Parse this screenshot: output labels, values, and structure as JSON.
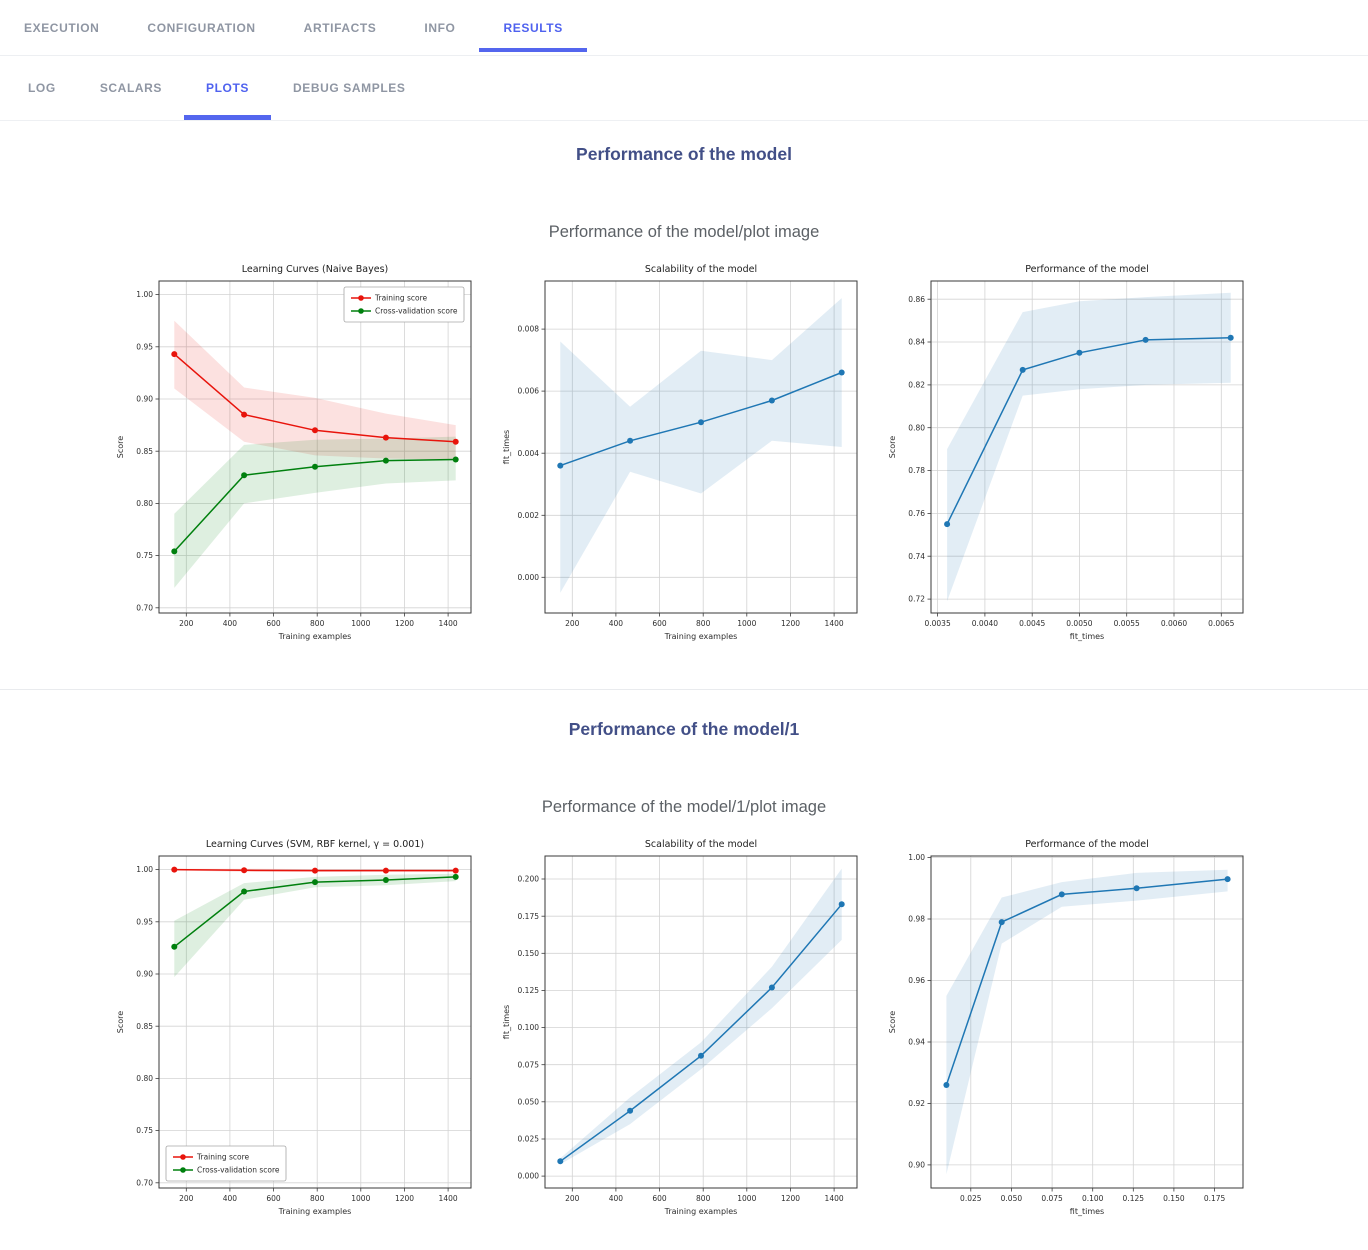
{
  "tabs_primary": [
    {
      "label": "EXECUTION",
      "active": false
    },
    {
      "label": "CONFIGURATION",
      "active": false
    },
    {
      "label": "ARTIFACTS",
      "active": false
    },
    {
      "label": "INFO",
      "active": false
    },
    {
      "label": "RESULTS",
      "active": true
    }
  ],
  "tabs_secondary": [
    {
      "label": "LOG",
      "active": false
    },
    {
      "label": "SCALARS",
      "active": false
    },
    {
      "label": "PLOTS",
      "active": true
    },
    {
      "label": "DEBUG SAMPLES",
      "active": false
    }
  ],
  "sections": [
    {
      "title": "Performance of the model",
      "subtitle": "Performance of the model/plot image"
    },
    {
      "title": "Performance of the model/1",
      "subtitle": "Performance of the model/1/plot image"
    }
  ],
  "colors": {
    "accent_tab": "#4f62ef",
    "tab_underline": "#5466ee",
    "tab_inactive": "#8f96a3",
    "section_title": "#424f87",
    "subtitle": "#5c6166",
    "line_red": "#e8140c",
    "line_green": "#00800e",
    "line_blue": "#1f77b4"
  },
  "chart_data": [
    {
      "type": "line",
      "title": "Learning Curves (Naive Bayes)",
      "xlabel": "Training examples",
      "ylabel": "Score",
      "xlim": [
        75,
        1505
      ],
      "ylim": [
        0.695,
        1.013
      ],
      "grid": true,
      "legend": {
        "position": "top-right"
      },
      "xtick_vals": [
        200,
        400,
        600,
        800,
        1000,
        1200,
        1400
      ],
      "xtick_labels": [
        "200",
        "400",
        "600",
        "800",
        "1000",
        "1200",
        "1400"
      ],
      "ytick_vals": [
        0.7,
        0.75,
        0.8,
        0.85,
        0.9,
        0.95,
        1.0
      ],
      "ytick_labels": [
        "0.70",
        "0.75",
        "0.80",
        "0.85",
        "0.90",
        "0.95",
        "1.00"
      ],
      "series": [
        {
          "name": "Training score",
          "color": "#e8140c",
          "x": [
            145,
            465,
            790,
            1115,
            1435
          ],
          "y": [
            0.943,
            0.885,
            0.87,
            0.863,
            0.859
          ],
          "band_upper": [
            0.975,
            0.911,
            0.901,
            0.886,
            0.875
          ],
          "band_lower": [
            0.91,
            0.859,
            0.846,
            0.843,
            0.842
          ]
        },
        {
          "name": "Cross-validation score",
          "color": "#00800e",
          "x": [
            145,
            465,
            790,
            1115,
            1435
          ],
          "y": [
            0.754,
            0.827,
            0.835,
            0.841,
            0.842
          ],
          "band_upper": [
            0.79,
            0.856,
            0.861,
            0.862,
            0.864
          ],
          "band_lower": [
            0.719,
            0.8,
            0.81,
            0.819,
            0.822
          ]
        }
      ]
    },
    {
      "type": "line",
      "title": "Scalability of the model",
      "xlabel": "Training examples",
      "ylabel": "fit_times",
      "xlim": [
        75,
        1505
      ],
      "ylim": [
        -0.00115,
        0.00955
      ],
      "grid": true,
      "legend": null,
      "xtick_vals": [
        200,
        400,
        600,
        800,
        1000,
        1200,
        1400
      ],
      "xtick_labels": [
        "200",
        "400",
        "600",
        "800",
        "1000",
        "1200",
        "1400"
      ],
      "ytick_vals": [
        0.0,
        0.002,
        0.004,
        0.006,
        0.008
      ],
      "ytick_labels": [
        "0.000",
        "0.002",
        "0.004",
        "0.006",
        "0.008"
      ],
      "series": [
        {
          "name": "fit_times",
          "color": "#1f77b4",
          "x": [
            145,
            465,
            790,
            1115,
            1435
          ],
          "y": [
            0.0036,
            0.0044,
            0.005,
            0.0057,
            0.0066
          ],
          "band_upper": [
            0.0076,
            0.0055,
            0.0073,
            0.007,
            0.009
          ],
          "band_lower": [
            -0.0005,
            0.0034,
            0.0027,
            0.0044,
            0.0042
          ]
        }
      ]
    },
    {
      "type": "line",
      "title": "Performance of the model",
      "xlabel": "fit_times",
      "ylabel": "Score",
      "xlim": [
        0.00343,
        0.00673
      ],
      "ylim": [
        0.7135,
        0.8685
      ],
      "grid": true,
      "legend": null,
      "xtick_vals": [
        0.0035,
        0.004,
        0.0045,
        0.005,
        0.0055,
        0.006,
        0.0065
      ],
      "xtick_labels": [
        "0.0035",
        "0.0040",
        "0.0045",
        "0.0050",
        "0.0055",
        "0.0060",
        "0.0065"
      ],
      "ytick_vals": [
        0.72,
        0.74,
        0.76,
        0.78,
        0.8,
        0.82,
        0.84,
        0.86
      ],
      "ytick_labels": [
        "0.72",
        "0.74",
        "0.76",
        "0.78",
        "0.80",
        "0.82",
        "0.84",
        "0.86"
      ],
      "series": [
        {
          "name": "Score",
          "color": "#1f77b4",
          "x": [
            0.0036,
            0.0044,
            0.005,
            0.0057,
            0.0066
          ],
          "y": [
            0.755,
            0.827,
            0.835,
            0.841,
            0.842
          ],
          "band_upper": [
            0.79,
            0.854,
            0.859,
            0.861,
            0.863
          ],
          "band_lower": [
            0.719,
            0.815,
            0.818,
            0.82,
            0.821
          ]
        }
      ]
    },
    {
      "type": "line",
      "title": "Learning Curves (SVM, RBF kernel, γ = 0.001)",
      "xlabel": "Training examples",
      "ylabel": "Score",
      "xlim": [
        75,
        1505
      ],
      "ylim": [
        0.695,
        1.013
      ],
      "grid": true,
      "legend": {
        "position": "bottom-left"
      },
      "xtick_vals": [
        200,
        400,
        600,
        800,
        1000,
        1200,
        1400
      ],
      "xtick_labels": [
        "200",
        "400",
        "600",
        "800",
        "1000",
        "1200",
        "1400"
      ],
      "ytick_vals": [
        0.7,
        0.75,
        0.8,
        0.85,
        0.9,
        0.95,
        1.0
      ],
      "ytick_labels": [
        "0.70",
        "0.75",
        "0.80",
        "0.85",
        "0.90",
        "0.95",
        "1.00"
      ],
      "series": [
        {
          "name": "Training score",
          "color": "#e8140c",
          "x": [
            145,
            465,
            790,
            1115,
            1435
          ],
          "y": [
            1.0,
            0.9993,
            0.999,
            0.999,
            0.999
          ],
          "band_upper": [
            1.0008,
            1.0008,
            1.0005,
            1.0005,
            1.0005
          ],
          "band_lower": [
            0.9992,
            0.9978,
            0.9978,
            0.998,
            0.998
          ]
        },
        {
          "name": "Cross-validation score",
          "color": "#00800e",
          "x": [
            145,
            465,
            790,
            1115,
            1435
          ],
          "y": [
            0.926,
            0.979,
            0.988,
            0.99,
            0.993
          ],
          "band_upper": [
            0.951,
            0.987,
            0.993,
            0.995,
            0.996
          ],
          "band_lower": [
            0.897,
            0.971,
            0.983,
            0.985,
            0.989
          ]
        }
      ]
    },
    {
      "type": "line",
      "title": "Scalability of the model",
      "xlabel": "Training examples",
      "ylabel": "fit_times",
      "xlim": [
        75,
        1505
      ],
      "ylim": [
        -0.008,
        0.2155
      ],
      "grid": true,
      "legend": null,
      "xtick_vals": [
        200,
        400,
        600,
        800,
        1000,
        1200,
        1400
      ],
      "xtick_labels": [
        "200",
        "400",
        "600",
        "800",
        "1000",
        "1200",
        "1400"
      ],
      "ytick_vals": [
        0.0,
        0.025,
        0.05,
        0.075,
        0.1,
        0.125,
        0.15,
        0.175,
        0.2
      ],
      "ytick_labels": [
        "0.000",
        "0.025",
        "0.050",
        "0.075",
        "0.100",
        "0.125",
        "0.150",
        "0.175",
        "0.200"
      ],
      "series": [
        {
          "name": "fit_times",
          "color": "#1f77b4",
          "x": [
            145,
            465,
            790,
            1115,
            1435
          ],
          "y": [
            0.01,
            0.044,
            0.081,
            0.127,
            0.183
          ],
          "band_upper": [
            0.012,
            0.053,
            0.09,
            0.141,
            0.207
          ],
          "band_lower": [
            0.008,
            0.035,
            0.072,
            0.113,
            0.159
          ]
        }
      ]
    },
    {
      "type": "line",
      "title": "Performance of the model",
      "xlabel": "fit_times",
      "ylabel": "Score",
      "xlim": [
        0.0005,
        0.1925
      ],
      "ylim": [
        0.8925,
        1.0005
      ],
      "grid": true,
      "legend": null,
      "xtick_vals": [
        0.025,
        0.05,
        0.075,
        0.1,
        0.125,
        0.15,
        0.175
      ],
      "xtick_labels": [
        "0.025",
        "0.050",
        "0.075",
        "0.100",
        "0.125",
        "0.150",
        "0.175"
      ],
      "ytick_vals": [
        0.9,
        0.92,
        0.94,
        0.96,
        0.98,
        1.0
      ],
      "ytick_labels": [
        "0.90",
        "0.92",
        "0.94",
        "0.96",
        "0.98",
        "1.00"
      ],
      "series": [
        {
          "name": "Score",
          "color": "#1f77b4",
          "x": [
            0.01,
            0.044,
            0.081,
            0.127,
            0.183
          ],
          "y": [
            0.926,
            0.979,
            0.988,
            0.99,
            0.993
          ],
          "band_upper": [
            0.955,
            0.987,
            0.992,
            0.995,
            0.996
          ],
          "band_lower": [
            0.897,
            0.972,
            0.984,
            0.986,
            0.989
          ]
        }
      ]
    }
  ]
}
